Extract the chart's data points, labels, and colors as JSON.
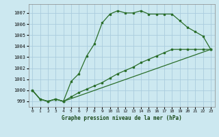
{
  "title": "Graphe pression niveau de la mer (hPa)",
  "background_color": "#cce8f0",
  "grid_color": "#aaccdd",
  "line_color": "#2a6e2a",
  "xlim": [
    -0.5,
    23.5
  ],
  "ylim": [
    998.5,
    1007.8
  ],
  "yticks": [
    999,
    1000,
    1001,
    1002,
    1003,
    1004,
    1005,
    1006,
    1007
  ],
  "xticks": [
    0,
    1,
    2,
    3,
    4,
    5,
    6,
    7,
    8,
    9,
    10,
    11,
    12,
    13,
    14,
    15,
    16,
    17,
    18,
    19,
    20,
    21,
    22,
    23
  ],
  "series1": [
    [
      0,
      1000.0
    ],
    [
      1,
      999.2
    ],
    [
      2,
      999.0
    ],
    [
      3,
      999.2
    ],
    [
      4,
      999.0
    ],
    [
      5,
      1000.8
    ],
    [
      6,
      1001.5
    ],
    [
      7,
      1003.1
    ],
    [
      8,
      1004.2
    ],
    [
      9,
      1006.1
    ],
    [
      10,
      1006.9
    ],
    [
      11,
      1007.2
    ],
    [
      12,
      1007.0
    ],
    [
      13,
      1007.0
    ],
    [
      14,
      1007.2
    ],
    [
      15,
      1006.9
    ],
    [
      16,
      1006.9
    ],
    [
      17,
      1006.9
    ],
    [
      18,
      1006.9
    ],
    [
      19,
      1006.3
    ],
    [
      20,
      1005.7
    ],
    [
      21,
      1005.3
    ],
    [
      22,
      1004.9
    ],
    [
      23,
      1003.7
    ]
  ],
  "series2": [
    [
      0,
      1000.0
    ],
    [
      1,
      999.2
    ],
    [
      2,
      999.0
    ],
    [
      3,
      999.2
    ],
    [
      4,
      999.0
    ],
    [
      23,
      1003.7
    ]
  ],
  "series3": [
    [
      0,
      1000.0
    ],
    [
      1,
      999.2
    ],
    [
      2,
      999.0
    ],
    [
      3,
      999.2
    ],
    [
      4,
      999.0
    ],
    [
      5,
      999.4
    ],
    [
      6,
      999.8
    ],
    [
      7,
      1000.1
    ],
    [
      8,
      1000.4
    ],
    [
      9,
      1000.7
    ],
    [
      10,
      1001.1
    ],
    [
      11,
      1001.5
    ],
    [
      12,
      1001.8
    ],
    [
      13,
      1002.1
    ],
    [
      14,
      1002.5
    ],
    [
      15,
      1002.8
    ],
    [
      16,
      1003.1
    ],
    [
      17,
      1003.4
    ],
    [
      18,
      1003.7
    ],
    [
      19,
      1003.7
    ],
    [
      20,
      1003.7
    ],
    [
      21,
      1003.7
    ],
    [
      22,
      1003.7
    ],
    [
      23,
      1003.7
    ]
  ]
}
